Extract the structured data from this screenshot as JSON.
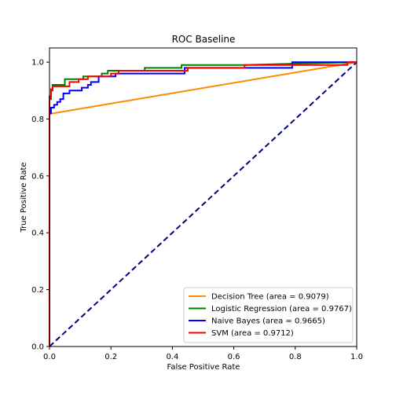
{
  "chart_data": {
    "type": "line",
    "title": "ROC Baseline",
    "xlabel": "False Positive Rate",
    "ylabel": "True Positive Rate",
    "xlim": [
      0.0,
      1.0
    ],
    "ylim": [
      0.0,
      1.05
    ],
    "xticks": [
      "0.0",
      "0.2",
      "0.4",
      "0.6",
      "0.8",
      "1.0"
    ],
    "yticks": [
      "0.0",
      "0.2",
      "0.4",
      "0.6",
      "0.8",
      "1.0"
    ],
    "grid": false,
    "legend_position": "lower-right",
    "diagonal": {
      "x": [
        0,
        1
      ],
      "y": [
        0,
        1
      ],
      "color": "#000080",
      "style": "dashed"
    },
    "series": [
      {
        "name": "Decision Tree (area = 0.9079)",
        "color": "#ff8c00",
        "x": [
          0.0,
          0.0,
          1.0
        ],
        "y": [
          0.0,
          0.818,
          1.0
        ]
      },
      {
        "name": "Logistic Regression (area = 0.9767)",
        "color": "#008000",
        "x": [
          0.0,
          0.0,
          0.005,
          0.005,
          0.01,
          0.01,
          0.05,
          0.05,
          0.11,
          0.11,
          0.17,
          0.17,
          0.19,
          0.19,
          0.31,
          0.31,
          0.43,
          0.43,
          0.59,
          0.59,
          0.63,
          0.63,
          1.0
        ],
        "y": [
          0.0,
          0.88,
          0.88,
          0.905,
          0.905,
          0.92,
          0.92,
          0.94,
          0.94,
          0.95,
          0.95,
          0.96,
          0.96,
          0.97,
          0.97,
          0.98,
          0.98,
          0.99,
          0.99,
          0.99,
          0.99,
          0.99,
          1.0
        ]
      },
      {
        "name": "Naive Bayes (area = 0.9665)",
        "color": "#0000ff",
        "x": [
          0.0,
          0.0,
          0.005,
          0.005,
          0.015,
          0.015,
          0.025,
          0.025,
          0.035,
          0.035,
          0.045,
          0.045,
          0.065,
          0.065,
          0.105,
          0.105,
          0.125,
          0.125,
          0.135,
          0.135,
          0.16,
          0.16,
          0.215,
          0.215,
          0.44,
          0.44,
          0.79,
          0.79,
          0.93,
          0.93,
          1.0
        ],
        "y": [
          0.0,
          0.82,
          0.82,
          0.84,
          0.84,
          0.85,
          0.85,
          0.86,
          0.86,
          0.87,
          0.87,
          0.89,
          0.89,
          0.9,
          0.9,
          0.91,
          0.91,
          0.92,
          0.92,
          0.93,
          0.93,
          0.95,
          0.95,
          0.96,
          0.96,
          0.98,
          0.98,
          1.0,
          1.0,
          1.0,
          1.0
        ]
      },
      {
        "name": "SVM (area = 0.9712)",
        "color": "#ff0000",
        "x": [
          0.0,
          0.0,
          0.005,
          0.005,
          0.01,
          0.01,
          0.065,
          0.065,
          0.095,
          0.095,
          0.125,
          0.125,
          0.2,
          0.2,
          0.225,
          0.225,
          0.45,
          0.45,
          0.635,
          0.635,
          0.97,
          0.97,
          1.0
        ],
        "y": [
          0.0,
          0.87,
          0.87,
          0.9,
          0.9,
          0.915,
          0.915,
          0.93,
          0.93,
          0.94,
          0.94,
          0.95,
          0.95,
          0.96,
          0.96,
          0.97,
          0.97,
          0.98,
          0.98,
          0.99,
          0.99,
          1.0,
          1.0
        ]
      }
    ]
  }
}
